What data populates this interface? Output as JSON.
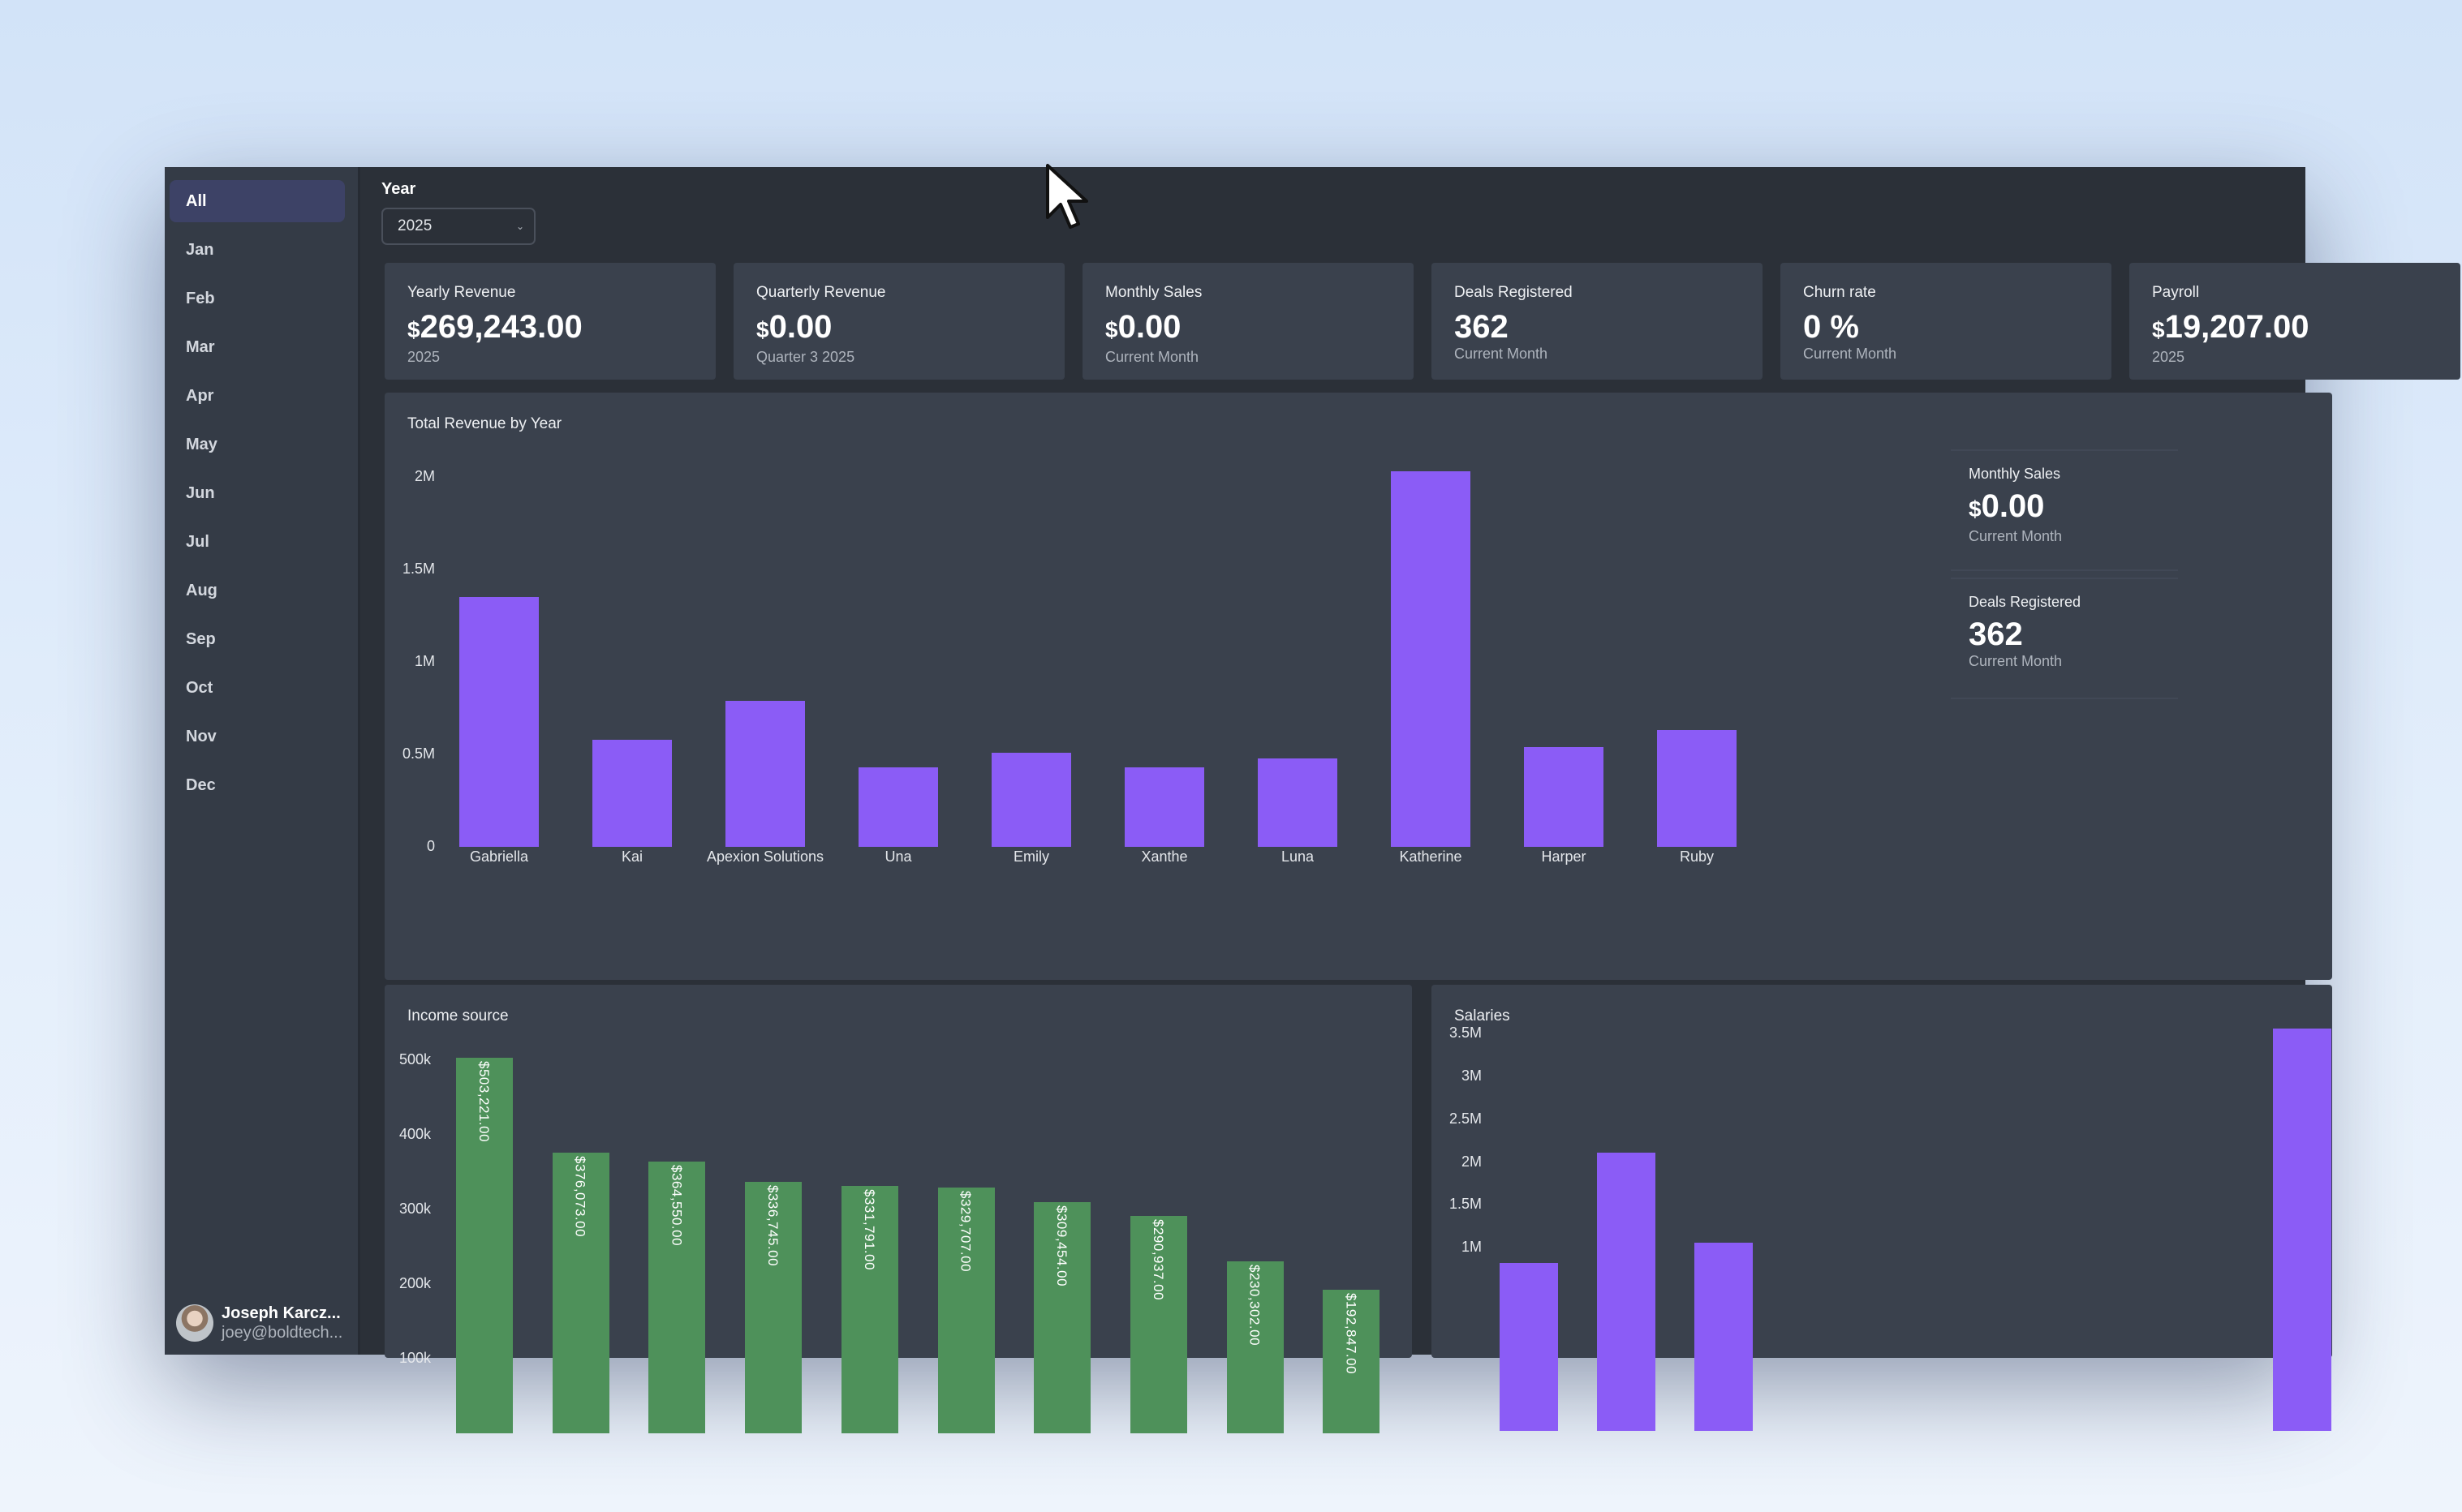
{
  "sidebar": {
    "months": [
      "All",
      "Jan",
      "Feb",
      "Mar",
      "Apr",
      "May",
      "Jun",
      "Jul",
      "Aug",
      "Sep",
      "Oct",
      "Nov",
      "Dec"
    ],
    "active": "All",
    "user": {
      "name": "Joseph Karcz...",
      "email": "joey@boldtech..."
    }
  },
  "filters": {
    "year_label": "Year",
    "year_value": "2025"
  },
  "kpis": [
    {
      "title": "Yearly Revenue",
      "currency": "$",
      "value": "269,243.00",
      "sub": "2025"
    },
    {
      "title": "Quarterly Revenue",
      "currency": "$",
      "value": "0.00",
      "sub": "Quarter 3 2025"
    },
    {
      "title": "Monthly Sales",
      "currency": "$",
      "value": "0.00",
      "sub": "Current Month"
    },
    {
      "title": "Deals Registered",
      "currency": "",
      "value": "362",
      "sub": "Current Month"
    },
    {
      "title": "Churn rate",
      "currency": "",
      "value": "0 %",
      "sub": "Current Month"
    },
    {
      "title": "Payroll",
      "currency": "$",
      "value": "19,207.00",
      "sub": "2025"
    }
  ],
  "side_stats": [
    {
      "title": "Monthly Sales",
      "currency": "$",
      "value": "0.00",
      "sub": "Current Month"
    },
    {
      "title": "Deals Registered",
      "currency": "",
      "value": "362",
      "sub": "Current Month"
    }
  ],
  "chart_data": [
    {
      "type": "bar",
      "title": "Total Revenue by Year",
      "categories": [
        "Gabriella",
        "Kai",
        "Apexion Solutions",
        "Una",
        "Emily",
        "Xanthe",
        "Luna",
        "Katherine",
        "Harper",
        "Ruby"
      ],
      "values": [
        1350000,
        580000,
        790000,
        430000,
        510000,
        430000,
        480000,
        2030000,
        540000,
        630000
      ],
      "yticks": [
        "0",
        "0.5M",
        "1M",
        "1.5M",
        "2M"
      ],
      "ylim": [
        0,
        2000000
      ],
      "color": "#8b5cf6"
    },
    {
      "type": "bar",
      "title": "Income source",
      "values": [
        503221,
        376073,
        364550,
        336745,
        331791,
        329707,
        309454,
        290937,
        230302,
        192847
      ],
      "data_labels": [
        "$503,221.00",
        "$376,073.00",
        "$364,550.00",
        "$336,745.00",
        "$331,791.00",
        "$329,707.00",
        "$309,454.00",
        "$290,937.00",
        "$230,302.00",
        "$192,847.00"
      ],
      "yticks": [
        "100k",
        "200k",
        "300k",
        "400k",
        "500k"
      ],
      "ylim": [
        0,
        500000
      ],
      "color": "#4e915a"
    },
    {
      "type": "bar",
      "title": "Salaries",
      "values": [
        820000,
        2110000,
        1060000,
        3560000
      ],
      "yticks": [
        "1M",
        "1.5M",
        "2M",
        "2.5M",
        "3M",
        "3.5M"
      ],
      "ylim": [
        0,
        3500000
      ],
      "color": "#8b5cf6"
    }
  ]
}
